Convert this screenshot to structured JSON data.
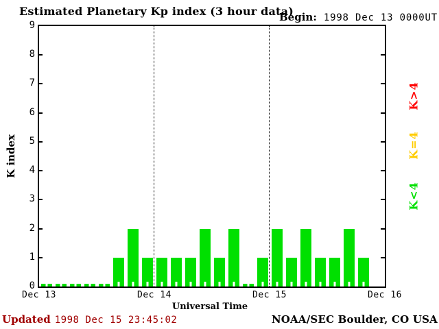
{
  "title": "Estimated Planetary Kp index (3 hour data)",
  "begin": {
    "label": "Begin:",
    "value": "1998 Dec 13 0000UT"
  },
  "footer": {
    "updated_label": "Updated",
    "updated_value": "1998 Dec 15 23:45:02",
    "credit": "NOAA/SEC Boulder, CO USA"
  },
  "colors": {
    "bar_green": "#00e000",
    "legend_yellow": "#ffcc00",
    "legend_red": "#ff0000",
    "updated_text": "#a00000",
    "axis": "#000000"
  },
  "legend": {
    "items": [
      {
        "label": "K>4",
        "color": "#ff0000"
      },
      {
        "label": "K=4",
        "color": "#ffcc00"
      },
      {
        "label": "K<4",
        "color": "#00e000"
      }
    ]
  },
  "chart_data": {
    "type": "bar",
    "title": "Estimated Planetary Kp index (3 hour data)",
    "xlabel": "Universal Time",
    "ylabel": "K index",
    "begin": "1998 Dec 13 0000UT",
    "hours_per_bar": 3,
    "ylim": [
      0,
      9
    ],
    "y_ticks": [
      0,
      1,
      2,
      3,
      4,
      5,
      6,
      7,
      8,
      9
    ],
    "x_day_labels": [
      "Dec 13",
      "Dec 14",
      "Dec 15",
      "Dec 16"
    ],
    "days": [
      {
        "date": "Dec 13",
        "kp": [
          0,
          0,
          0,
          0,
          0,
          1,
          2,
          1
        ]
      },
      {
        "date": "Dec 14",
        "kp": [
          1,
          1,
          1,
          2,
          1,
          2,
          0,
          1
        ]
      },
      {
        "date": "Dec 15",
        "kp": [
          2,
          1,
          2,
          1,
          1,
          2,
          1,
          null
        ]
      }
    ],
    "values": [
      0,
      0,
      0,
      0,
      0,
      1,
      2,
      1,
      1,
      1,
      1,
      2,
      1,
      2,
      0,
      1,
      2,
      1,
      2,
      1,
      1,
      2,
      1,
      null
    ],
    "bar_color": "#00e000",
    "color_rule": {
      "green": "K<4",
      "yellow": "K=4",
      "red": "K>4"
    },
    "grid": "dotted vertical lines at day boundaries",
    "legend_position": "right"
  }
}
